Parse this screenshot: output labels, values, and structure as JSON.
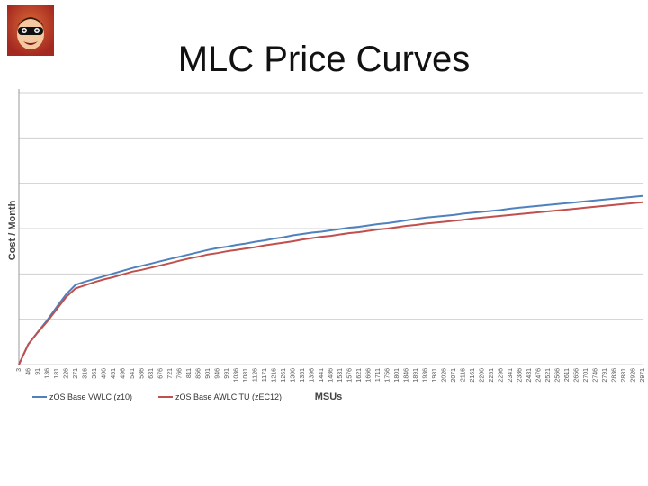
{
  "page": {
    "title": "MLC Price Curves"
  },
  "logo": {
    "icon": "cartoon-hero-face-icon"
  },
  "colors": {
    "series1": "#4f81bd",
    "series2": "#c0504d",
    "grid": "#d0d0d0"
  },
  "chart_data": {
    "type": "line",
    "title": "MLC Price Curves",
    "xlabel": "MSUs",
    "ylabel": "Cost / Month",
    "x": [
      "3",
      "46",
      "91",
      "136",
      "181",
      "226",
      "271",
      "316",
      "361",
      "406",
      "451",
      "496",
      "541",
      "586",
      "631",
      "676",
      "721",
      "766",
      "811",
      "856",
      "901",
      "946",
      "991",
      "1036",
      "1081",
      "1126",
      "1171",
      "1216",
      "1261",
      "1306",
      "1351",
      "1396",
      "1441",
      "1486",
      "1531",
      "1576",
      "1621",
      "1666",
      "1711",
      "1756",
      "1801",
      "1846",
      "1891",
      "1936",
      "1981",
      "2026",
      "2071",
      "2116",
      "2161",
      "2206",
      "2251",
      "2296",
      "2341",
      "2386",
      "2431",
      "2476",
      "2521",
      "2566",
      "2611",
      "2656",
      "2701",
      "2746",
      "2791",
      "2836",
      "2881",
      "2926",
      "2971"
    ],
    "yticks": 6,
    "ylim": [
      0,
      6
    ],
    "grid": true,
    "legend_position": "bottom-left",
    "series": [
      {
        "name": "zOS Base VWLC (z10)",
        "color": "#4f81bd",
        "values": [
          0.0,
          0.45,
          0.72,
          0.98,
          1.27,
          1.55,
          1.76,
          1.83,
          1.89,
          1.95,
          2.01,
          2.07,
          2.13,
          2.18,
          2.23,
          2.28,
          2.33,
          2.38,
          2.43,
          2.48,
          2.53,
          2.57,
          2.6,
          2.64,
          2.67,
          2.71,
          2.74,
          2.78,
          2.81,
          2.85,
          2.88,
          2.91,
          2.93,
          2.96,
          2.99,
          3.02,
          3.04,
          3.07,
          3.1,
          3.12,
          3.15,
          3.18,
          3.21,
          3.24,
          3.26,
          3.28,
          3.3,
          3.33,
          3.35,
          3.37,
          3.39,
          3.41,
          3.44,
          3.46,
          3.48,
          3.5,
          3.52,
          3.54,
          3.56,
          3.58,
          3.6,
          3.62,
          3.64,
          3.66,
          3.68,
          3.7,
          3.72
        ]
      },
      {
        "name": "zOS Base AWLC TU (zEC12)",
        "color": "#c0504d",
        "values": [
          0.0,
          0.45,
          0.71,
          0.95,
          1.22,
          1.49,
          1.68,
          1.75,
          1.82,
          1.88,
          1.93,
          1.99,
          2.05,
          2.09,
          2.14,
          2.19,
          2.24,
          2.29,
          2.34,
          2.38,
          2.43,
          2.46,
          2.5,
          2.53,
          2.56,
          2.59,
          2.63,
          2.66,
          2.69,
          2.72,
          2.76,
          2.79,
          2.82,
          2.84,
          2.87,
          2.9,
          2.92,
          2.95,
          2.98,
          3.0,
          3.03,
          3.06,
          3.08,
          3.11,
          3.13,
          3.15,
          3.17,
          3.19,
          3.22,
          3.24,
          3.26,
          3.28,
          3.3,
          3.32,
          3.34,
          3.36,
          3.38,
          3.4,
          3.42,
          3.44,
          3.46,
          3.48,
          3.5,
          3.52,
          3.54,
          3.56,
          3.58
        ]
      }
    ]
  }
}
